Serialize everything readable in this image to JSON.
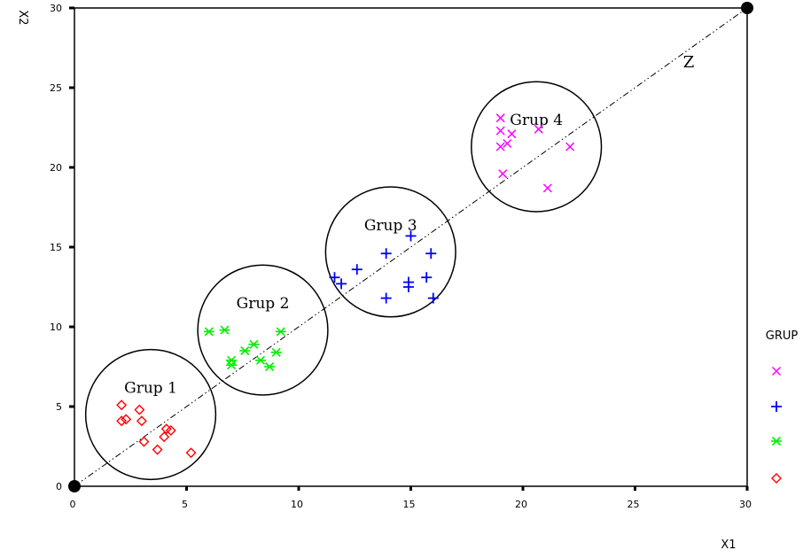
{
  "chart_data": {
    "type": "scatter",
    "xlabel": "X1",
    "ylabel": "X2",
    "xlim": [
      0,
      30
    ],
    "ylim": [
      0,
      30
    ],
    "xticks": [
      "0",
      "5",
      "10",
      "15",
      "20",
      "25",
      "30"
    ],
    "yticks": [
      "0",
      "5",
      "10",
      "15",
      "20",
      "25",
      "30"
    ],
    "grid": false,
    "legend": {
      "title": "GRUP",
      "placement": "right"
    },
    "line": {
      "label": "Z",
      "from": [
        0,
        0
      ],
      "to": [
        30,
        30
      ]
    },
    "groups": [
      {
        "label": "Grup 1",
        "center": [
          3.4,
          4.5
        ],
        "radius": 2.9
      },
      {
        "label": "Grup 2",
        "center": [
          8.4,
          9.8
        ],
        "radius": 2.9
      },
      {
        "label": "Grup 3",
        "center": [
          14.1,
          14.7
        ],
        "radius": 2.9
      },
      {
        "label": "Grup 4",
        "center": [
          20.6,
          21.3
        ],
        "radius": 2.9
      }
    ],
    "series": [
      {
        "marker": "x",
        "color": "#ff00ff",
        "points": [
          [
            19.0,
            23.1
          ],
          [
            19.0,
            22.3
          ],
          [
            19.0,
            21.3
          ],
          [
            19.3,
            21.5
          ],
          [
            19.5,
            22.1
          ],
          [
            20.7,
            22.4
          ],
          [
            22.1,
            21.3
          ],
          [
            19.1,
            19.6
          ],
          [
            21.1,
            18.7
          ]
        ]
      },
      {
        "marker": "plus",
        "color": "#0000ff",
        "points": [
          [
            11.6,
            13.1
          ],
          [
            11.9,
            12.7
          ],
          [
            12.6,
            13.6
          ],
          [
            13.9,
            14.6
          ],
          [
            15.0,
            15.7
          ],
          [
            15.9,
            14.6
          ],
          [
            15.7,
            13.1
          ],
          [
            14.9,
            12.8
          ],
          [
            14.9,
            12.5
          ],
          [
            13.9,
            11.8
          ],
          [
            16.0,
            11.8
          ]
        ]
      },
      {
        "marker": "star",
        "color": "#00ee00",
        "points": [
          [
            6.0,
            9.7
          ],
          [
            6.7,
            9.8
          ],
          [
            9.2,
            9.7
          ],
          [
            7.0,
            7.9
          ],
          [
            7.0,
            7.6
          ],
          [
            7.6,
            8.5
          ],
          [
            8.0,
            8.9
          ],
          [
            8.3,
            7.9
          ],
          [
            8.7,
            7.5
          ],
          [
            9.0,
            8.4
          ]
        ]
      },
      {
        "marker": "diamond",
        "color": "#ff0000",
        "points": [
          [
            2.1,
            5.1
          ],
          [
            2.1,
            4.1
          ],
          [
            2.3,
            4.2
          ],
          [
            2.9,
            4.8
          ],
          [
            3.0,
            4.1
          ],
          [
            3.1,
            2.8
          ],
          [
            3.7,
            2.3
          ],
          [
            4.0,
            3.1
          ],
          [
            4.1,
            3.6
          ],
          [
            4.3,
            3.5
          ],
          [
            5.2,
            2.1
          ]
        ]
      }
    ]
  }
}
